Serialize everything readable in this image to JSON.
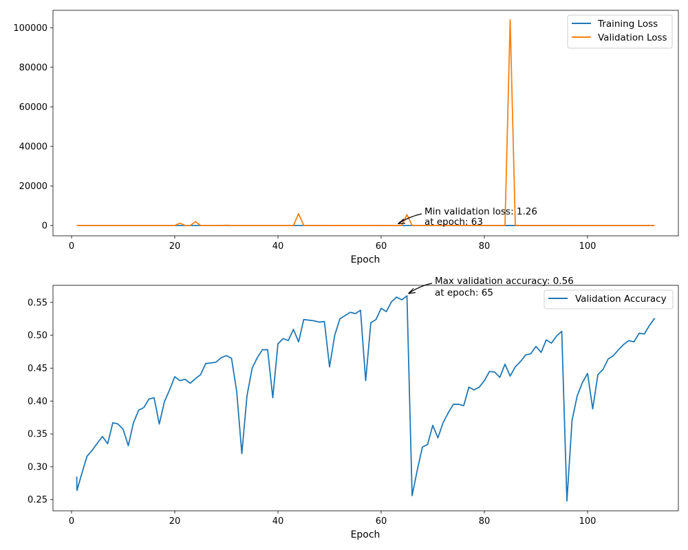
{
  "colors": {
    "training": "#1f77b4",
    "validation": "#ff7f0e",
    "accuracy": "#1f77b4"
  },
  "chart_data": [
    {
      "type": "line",
      "xlabel": "Epoch",
      "ylabel": "",
      "xlim": [
        -3.6,
        117.6
      ],
      "ylim": [
        -5200,
        108800
      ],
      "x_ticks": [
        0,
        20,
        40,
        60,
        80,
        100
      ],
      "x_tick_labels": [
        "0",
        "20",
        "40",
        "60",
        "80",
        "100"
      ],
      "y_ticks": [
        0,
        20000,
        40000,
        60000,
        80000,
        100000
      ],
      "y_tick_labels": [
        "0",
        "20000",
        "40000",
        "60000",
        "80000",
        "100000"
      ],
      "legend_position": "top-right",
      "series": [
        {
          "name": "Training Loss",
          "color": "#1f77b4",
          "x": [
            1,
            113
          ],
          "y": [
            1.5,
            1.2
          ]
        },
        {
          "name": "Validation Loss",
          "color": "#ff7f0e",
          "x": [
            1,
            20,
            21,
            22,
            23,
            24,
            25,
            26,
            29,
            30,
            31,
            43,
            44,
            45,
            63,
            64,
            65,
            66,
            84,
            85,
            86,
            113
          ],
          "y": [
            2,
            2,
            1200,
            50,
            2,
            2000,
            50,
            2,
            2,
            150,
            2,
            2,
            6000,
            50,
            1.26,
            50,
            5500,
            50,
            50,
            104000,
            50,
            2
          ]
        }
      ],
      "annotations": [
        {
          "text_line1": "Min validation loss: 1.26",
          "text_line2": "at epoch: 63",
          "x": 63,
          "y": 1.26
        }
      ]
    },
    {
      "type": "line",
      "xlabel": "Epoch",
      "ylabel": "",
      "xlim": [
        -3.6,
        117.6
      ],
      "ylim": [
        0.233,
        0.576
      ],
      "x_ticks": [
        0,
        20,
        40,
        60,
        80,
        100
      ],
      "x_tick_labels": [
        "0",
        "20",
        "40",
        "60",
        "80",
        "100"
      ],
      "y_ticks": [
        0.25,
        0.3,
        0.35,
        0.4,
        0.45,
        0.5,
        0.55
      ],
      "y_tick_labels": [
        "0.25",
        "0.30",
        "0.35",
        "0.40",
        "0.45",
        "0.50",
        "0.55"
      ],
      "legend_position": "top-right",
      "series": [
        {
          "name": "Validation Accuracy",
          "color": "#1f77b4",
          "x": [
            1,
            1.05,
            2,
            3,
            4,
            5,
            6,
            7,
            8,
            9,
            10,
            11,
            12,
            13,
            14,
            15,
            16,
            17,
            18,
            19,
            20,
            21,
            22,
            23,
            24,
            25,
            26,
            27,
            28,
            29,
            30,
            31,
            32,
            33,
            34,
            35,
            36,
            37,
            38,
            39,
            40,
            41,
            42,
            43,
            44,
            45,
            46,
            47,
            48,
            49,
            50,
            51,
            52,
            53,
            54,
            55,
            56,
            57,
            58,
            59,
            60,
            61,
            62,
            63,
            64,
            65,
            66,
            67,
            68,
            69,
            70,
            71,
            72,
            73,
            74,
            75,
            76,
            77,
            78,
            79,
            80,
            81,
            82,
            83,
            84,
            85,
            86,
            87,
            88,
            89,
            90,
            91,
            92,
            93,
            94,
            95,
            96,
            97,
            98,
            99,
            100,
            101,
            102,
            103,
            104,
            105,
            106,
            107,
            108,
            109,
            110,
            111,
            112,
            113
          ],
          "y": [
            0.285,
            0.264,
            0.29,
            0.316,
            0.325,
            0.336,
            0.346,
            0.335,
            0.367,
            0.365,
            0.357,
            0.332,
            0.367,
            0.386,
            0.39,
            0.403,
            0.405,
            0.365,
            0.399,
            0.417,
            0.437,
            0.431,
            0.433,
            0.427,
            0.434,
            0.44,
            0.457,
            0.458,
            0.459,
            0.466,
            0.469,
            0.465,
            0.415,
            0.32,
            0.408,
            0.45,
            0.466,
            0.478,
            0.478,
            0.405,
            0.487,
            0.495,
            0.492,
            0.509,
            0.49,
            0.524,
            0.523,
            0.522,
            0.52,
            0.521,
            0.452,
            0.5,
            0.525,
            0.53,
            0.535,
            0.533,
            0.538,
            0.431,
            0.519,
            0.524,
            0.541,
            0.536,
            0.551,
            0.558,
            0.554,
            0.56,
            0.256,
            0.295,
            0.33,
            0.334,
            0.363,
            0.344,
            0.367,
            0.382,
            0.395,
            0.395,
            0.393,
            0.421,
            0.417,
            0.421,
            0.431,
            0.445,
            0.444,
            0.436,
            0.456,
            0.438,
            0.452,
            0.46,
            0.47,
            0.472,
            0.483,
            0.474,
            0.493,
            0.488,
            0.499,
            0.506,
            0.248,
            0.371,
            0.408,
            0.428,
            0.442,
            0.388,
            0.44,
            0.448,
            0.464,
            0.469,
            0.478,
            0.486,
            0.492,
            0.49,
            0.503,
            0.502,
            0.515,
            0.526
          ]
        }
      ],
      "annotations": [
        {
          "text_line1": "Max validation accuracy: 0.56",
          "text_line2": "at epoch: 65",
          "x": 65,
          "y": 0.56
        }
      ]
    }
  ]
}
